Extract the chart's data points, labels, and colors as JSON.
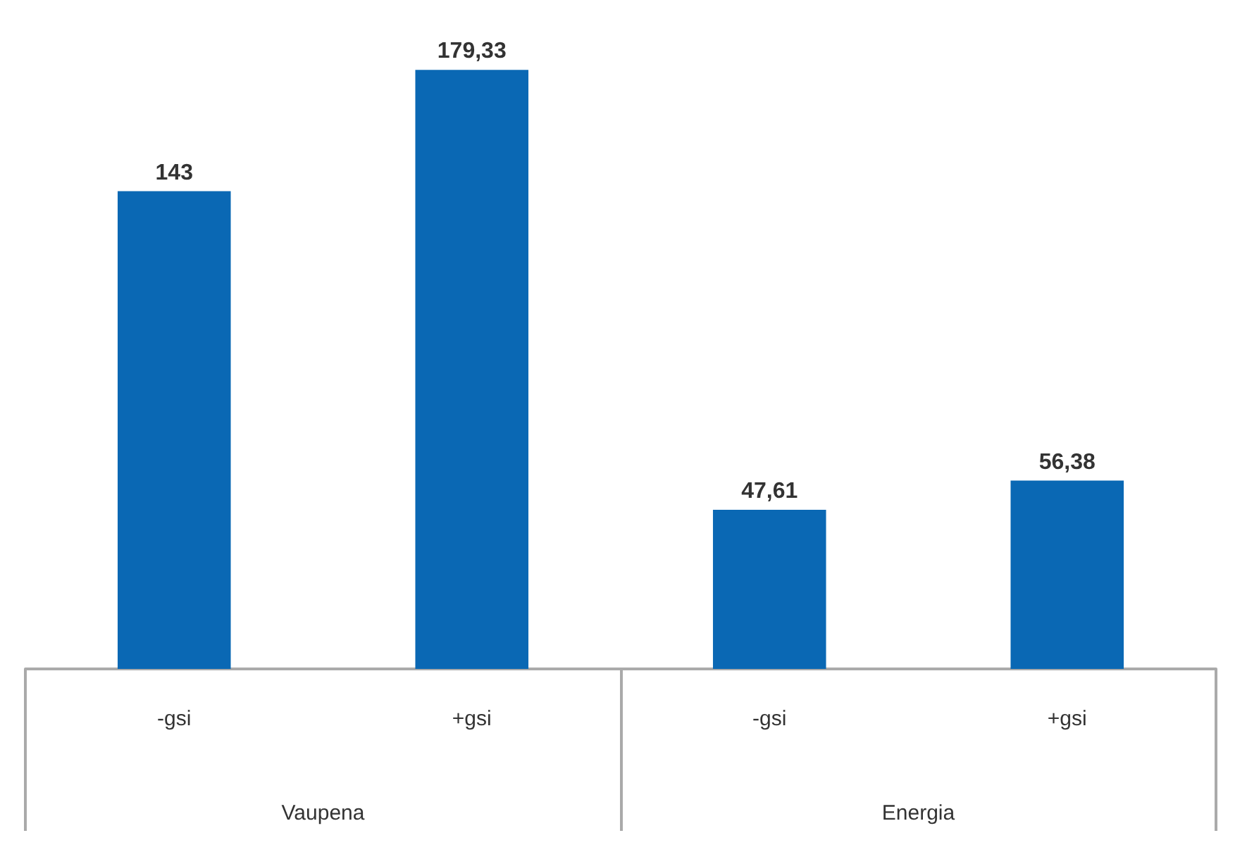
{
  "chart_data": {
    "type": "bar",
    "categories": [
      "-gsi",
      "+gsi",
      "-gsi",
      "+gsi"
    ],
    "values": [
      143,
      179.33,
      47.61,
      56.38
    ],
    "value_labels": [
      "143",
      "179,33",
      "47,61",
      "56,38"
    ],
    "color": "#0a68b4",
    "annotations": [
      "Vaupena",
      "Energia"
    ]
  }
}
